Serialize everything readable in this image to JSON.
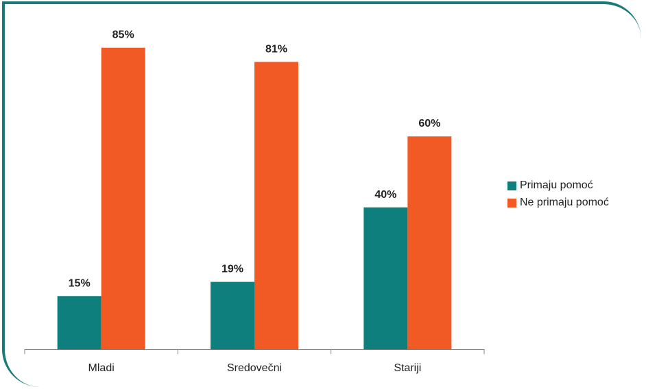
{
  "chart_data": {
    "type": "bar",
    "title": "",
    "xlabel": "",
    "ylabel": "",
    "ylim": [
      0,
      100
    ],
    "grid": false,
    "legend_position": "right",
    "categories": [
      "Mladi",
      "Sredovečni",
      "Stariji"
    ],
    "series": [
      {
        "name": "Primaju pomoć",
        "values": [
          15,
          19,
          40
        ],
        "labels": [
          "15%",
          "19%",
          "40%"
        ],
        "color": "#0e7f7c"
      },
      {
        "name": "Ne primaju pomoć",
        "values": [
          85,
          81,
          60
        ],
        "labels": [
          "85%",
          "81%",
          "60%"
        ],
        "color": "#f15a24"
      }
    ]
  },
  "colors": {
    "frame": "#1a7a7a",
    "axis": "#7f7f7f",
    "text": "#222222"
  }
}
